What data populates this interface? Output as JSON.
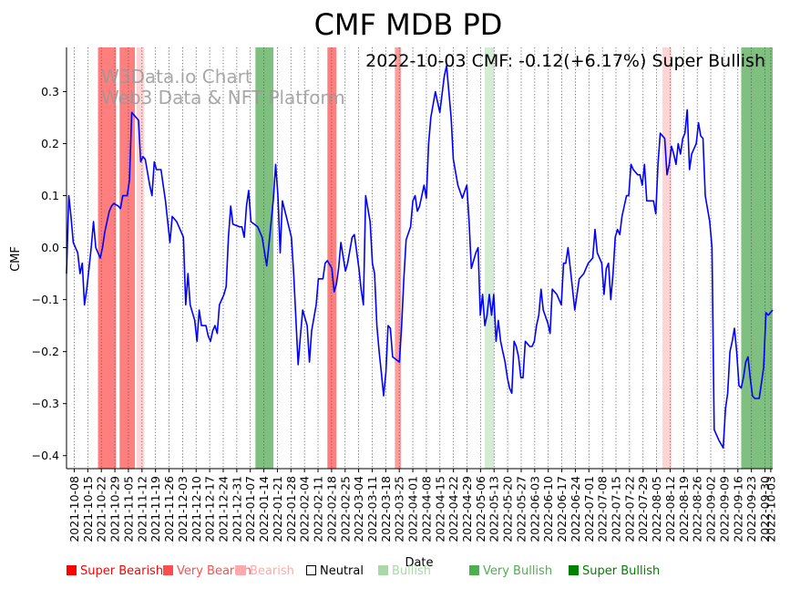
{
  "chart_data": {
    "type": "line",
    "title": "CMF MDB PD",
    "xlabel": "Date",
    "ylabel": "CMF",
    "ylim": [
      -0.425,
      0.385
    ],
    "yticks": [
      -0.4,
      -0.3,
      -0.2,
      -0.1,
      0.0,
      0.1,
      0.2,
      0.3
    ],
    "ytick_labels": [
      "−0.4",
      "−0.3",
      "−0.2",
      "−0.1",
      "0.0",
      "0.1",
      "0.2",
      "0.3"
    ],
    "start_date": "2021-10-04",
    "end_date": "2022-10-04",
    "xtick_labels": [
      "2021-10-08",
      "2021-10-15",
      "2021-10-22",
      "2021-10-29",
      "2021-11-05",
      "2021-11-12",
      "2021-11-19",
      "2021-11-26",
      "2021-12-03",
      "2021-12-10",
      "2021-12-17",
      "2021-12-24",
      "2021-12-31",
      "2022-01-07",
      "2022-01-14",
      "2022-01-21",
      "2022-01-28",
      "2022-02-04",
      "2022-02-11",
      "2022-02-18",
      "2022-02-25",
      "2022-03-04",
      "2022-03-11",
      "2022-03-18",
      "2022-03-25",
      "2022-04-01",
      "2022-04-08",
      "2022-04-15",
      "2022-04-22",
      "2022-04-29",
      "2022-05-06",
      "2022-05-13",
      "2022-05-20",
      "2022-05-27",
      "2022-06-03",
      "2022-06-10",
      "2022-06-17",
      "2022-06-24",
      "2022-07-01",
      "2022-07-08",
      "2022-07-15",
      "2022-07-22",
      "2022-07-29",
      "2022-08-05",
      "2022-08-12",
      "2022-08-19",
      "2022-08-26",
      "2022-09-02",
      "2022-09-09",
      "2022-09-16",
      "2022-09-23",
      "2022-09-30",
      "2022-10-03"
    ],
    "annotation": "2022-10-03 CMF: -0.12(+6.17%) Super Bullish",
    "watermark": [
      "W3Data.io Chart",
      "Web3 Data & NFT Platform"
    ],
    "series": [
      {
        "name": "CMF",
        "color": "#0000ff",
        "points": [
          [
            0.0,
            -0.05
          ],
          [
            0.5,
            0.1
          ],
          [
            1.0,
            0.06
          ],
          [
            1.5,
            0.01
          ],
          [
            2.5,
            -0.01
          ],
          [
            3.0,
            -0.05
          ],
          [
            3.5,
            -0.03
          ],
          [
            4.0,
            -0.11
          ],
          [
            4.5,
            -0.08
          ],
          [
            5.5,
            0.0
          ],
          [
            6.0,
            0.05
          ],
          [
            6.5,
            0.0
          ],
          [
            7.5,
            -0.02
          ],
          [
            8.0,
            0.0
          ],
          [
            8.5,
            0.03
          ],
          [
            9.5,
            0.07
          ],
          [
            10.0,
            0.08
          ],
          [
            10.5,
            0.085
          ],
          [
            11.5,
            0.08
          ],
          [
            12.0,
            0.075
          ],
          [
            12.5,
            0.1
          ],
          [
            13.5,
            0.1
          ],
          [
            14.0,
            0.13
          ],
          [
            14.5,
            0.26
          ],
          [
            15.5,
            0.25
          ],
          [
            16.0,
            0.245
          ],
          [
            16.5,
            0.165
          ],
          [
            17.0,
            0.175
          ],
          [
            17.5,
            0.17
          ],
          [
            18.5,
            0.12
          ],
          [
            19.0,
            0.1
          ],
          [
            19.5,
            0.165
          ],
          [
            20.0,
            0.15
          ],
          [
            21.0,
            0.15
          ],
          [
            21.5,
            0.12
          ],
          [
            22.0,
            0.09
          ],
          [
            23.0,
            0.01
          ],
          [
            23.5,
            0.06
          ],
          [
            24.5,
            0.05
          ],
          [
            25.0,
            0.04
          ],
          [
            26.0,
            0.02
          ],
          [
            26.5,
            -0.11
          ],
          [
            27.0,
            -0.05
          ],
          [
            27.5,
            -0.11
          ],
          [
            28.5,
            -0.14
          ],
          [
            29.0,
            -0.18
          ],
          [
            29.5,
            -0.12
          ],
          [
            30.0,
            -0.15
          ],
          [
            31.0,
            -0.15
          ],
          [
            31.5,
            -0.17
          ],
          [
            32.0,
            -0.18
          ],
          [
            32.5,
            -0.16
          ],
          [
            33.0,
            -0.15
          ],
          [
            33.5,
            -0.165
          ],
          [
            34.0,
            -0.11
          ],
          [
            35.0,
            -0.09
          ],
          [
            35.5,
            -0.075
          ],
          [
            36.0,
            0.02
          ],
          [
            36.5,
            0.08
          ],
          [
            37.0,
            0.045
          ],
          [
            38.5,
            0.04
          ],
          [
            39.0,
            0.04
          ],
          [
            39.5,
            0.02
          ],
          [
            40.0,
            0.08
          ],
          [
            40.5,
            0.11
          ],
          [
            41.0,
            0.05
          ],
          [
            42.5,
            0.04
          ],
          [
            43.5,
            0.02
          ],
          [
            44.5,
            -0.035
          ],
          [
            45.0,
            0.005
          ],
          [
            46.0,
            0.095
          ],
          [
            46.5,
            0.16
          ],
          [
            47.0,
            0.1
          ],
          [
            47.5,
            -0.01
          ],
          [
            48.0,
            0.09
          ],
          [
            49.0,
            0.055
          ],
          [
            50.0,
            0.02
          ],
          [
            50.5,
            -0.05
          ],
          [
            51.5,
            -0.225
          ],
          [
            52.0,
            -0.17
          ],
          [
            52.5,
            -0.12
          ],
          [
            53.5,
            -0.15
          ],
          [
            54.0,
            -0.22
          ],
          [
            54.5,
            -0.16
          ],
          [
            55.5,
            -0.11
          ],
          [
            56.0,
            -0.06
          ],
          [
            57.0,
            -0.06
          ],
          [
            57.5,
            -0.03
          ],
          [
            58.0,
            -0.025
          ],
          [
            59.0,
            -0.04
          ],
          [
            59.5,
            -0.085
          ],
          [
            60.0,
            -0.07
          ],
          [
            60.5,
            -0.04
          ],
          [
            61.0,
            0.01
          ],
          [
            62.0,
            -0.045
          ],
          [
            62.5,
            -0.03
          ],
          [
            63.5,
            0.02
          ],
          [
            64.0,
            0.025
          ],
          [
            65.0,
            -0.04
          ],
          [
            65.5,
            -0.08
          ],
          [
            66.0,
            -0.11
          ],
          [
            66.5,
            0.1
          ],
          [
            67.5,
            0.05
          ],
          [
            68.0,
            -0.03
          ],
          [
            68.5,
            -0.05
          ],
          [
            69.0,
            -0.15
          ],
          [
            69.5,
            -0.2
          ],
          [
            70.0,
            -0.24
          ],
          [
            70.5,
            -0.285
          ],
          [
            71.0,
            -0.24
          ],
          [
            71.5,
            -0.15
          ],
          [
            72.0,
            -0.155
          ],
          [
            72.5,
            -0.21
          ],
          [
            74.0,
            -0.22
          ],
          [
            74.5,
            -0.15
          ],
          [
            75.0,
            -0.06
          ],
          [
            75.5,
            0.015
          ],
          [
            76.5,
            0.04
          ],
          [
            77.0,
            0.09
          ],
          [
            77.5,
            0.1
          ],
          [
            78.0,
            0.07
          ],
          [
            78.5,
            0.08
          ],
          [
            79.5,
            0.12
          ],
          [
            80.0,
            0.095
          ],
          [
            80.5,
            0.2
          ],
          [
            81.0,
            0.25
          ],
          [
            82.0,
            0.3
          ],
          [
            82.5,
            0.28
          ],
          [
            83.0,
            0.26
          ],
          [
            84.0,
            0.33
          ],
          [
            84.5,
            0.35
          ],
          [
            85.5,
            0.25
          ],
          [
            86.0,
            0.17
          ],
          [
            87.0,
            0.12
          ],
          [
            88.0,
            0.095
          ],
          [
            89.0,
            0.12
          ],
          [
            89.5,
            0.05
          ],
          [
            90.0,
            -0.04
          ],
          [
            91.0,
            -0.01
          ],
          [
            91.5,
            0.0
          ],
          [
            92.0,
            -0.13
          ],
          [
            92.5,
            -0.09
          ],
          [
            93.0,
            -0.15
          ],
          [
            93.5,
            -0.13
          ],
          [
            94.0,
            -0.09
          ],
          [
            94.5,
            -0.13
          ],
          [
            95.0,
            -0.09
          ],
          [
            95.5,
            -0.18
          ],
          [
            96.0,
            -0.14
          ],
          [
            96.5,
            -0.18
          ],
          [
            97.0,
            -0.2
          ],
          [
            97.5,
            -0.22
          ],
          [
            98.0,
            -0.25
          ],
          [
            98.5,
            -0.27
          ],
          [
            99.0,
            -0.28
          ],
          [
            99.5,
            -0.18
          ],
          [
            100.0,
            -0.19
          ],
          [
            100.5,
            -0.21
          ],
          [
            101.0,
            -0.25
          ],
          [
            101.5,
            -0.25
          ],
          [
            102.0,
            -0.18
          ],
          [
            103.0,
            -0.19
          ],
          [
            103.5,
            -0.19
          ],
          [
            104.0,
            -0.18
          ],
          [
            104.5,
            -0.15
          ],
          [
            105.0,
            -0.13
          ],
          [
            105.5,
            -0.08
          ],
          [
            106.0,
            -0.12
          ],
          [
            107.0,
            -0.145
          ],
          [
            107.5,
            -0.165
          ],
          [
            108.0,
            -0.08
          ],
          [
            109.0,
            -0.09
          ],
          [
            110.0,
            -0.11
          ],
          [
            110.5,
            -0.03
          ],
          [
            111.0,
            -0.03
          ],
          [
            111.5,
            0.0
          ],
          [
            112.0,
            -0.04
          ],
          [
            113.0,
            -0.12
          ],
          [
            114.0,
            -0.06
          ],
          [
            115.0,
            -0.05
          ],
          [
            115.5,
            -0.04
          ],
          [
            116.0,
            -0.03
          ],
          [
            117.0,
            -0.02
          ],
          [
            117.5,
            0.035
          ],
          [
            118.0,
            -0.01
          ],
          [
            119.0,
            -0.03
          ],
          [
            119.5,
            -0.09
          ],
          [
            120.0,
            -0.04
          ],
          [
            120.5,
            -0.03
          ],
          [
            121.0,
            -0.1
          ],
          [
            121.5,
            -0.05
          ],
          [
            122.0,
            0.02
          ],
          [
            122.5,
            0.035
          ],
          [
            123.0,
            0.025
          ],
          [
            123.5,
            0.06
          ],
          [
            124.0,
            0.08
          ],
          [
            124.5,
            0.1
          ],
          [
            125.0,
            0.1
          ],
          [
            125.5,
            0.16
          ],
          [
            126.0,
            0.15
          ],
          [
            127.0,
            0.14
          ],
          [
            127.5,
            0.14
          ],
          [
            128.0,
            0.12
          ],
          [
            128.5,
            0.16
          ],
          [
            129.0,
            0.09
          ],
          [
            130.5,
            0.09
          ],
          [
            131.0,
            0.065
          ],
          [
            131.5,
            0.16
          ],
          [
            132.0,
            0.22
          ],
          [
            133.0,
            0.21
          ],
          [
            133.5,
            0.14
          ],
          [
            134.0,
            0.16
          ],
          [
            134.5,
            0.195
          ],
          [
            135.0,
            0.18
          ],
          [
            135.5,
            0.16
          ],
          [
            136.0,
            0.2
          ],
          [
            136.5,
            0.18
          ],
          [
            137.0,
            0.21
          ],
          [
            137.5,
            0.22
          ],
          [
            138.0,
            0.265
          ],
          [
            138.5,
            0.15
          ],
          [
            139.0,
            0.18
          ],
          [
            139.5,
            0.19
          ],
          [
            140.0,
            0.2
          ],
          [
            140.5,
            0.24
          ],
          [
            141.0,
            0.215
          ],
          [
            141.5,
            0.21
          ],
          [
            142.0,
            0.1
          ],
          [
            143.0,
            0.05
          ],
          [
            143.5,
            0.0
          ],
          [
            144.0,
            -0.35
          ],
          [
            144.5,
            -0.36
          ],
          [
            145.0,
            -0.37
          ],
          [
            146.0,
            -0.385
          ],
          [
            146.5,
            -0.31
          ],
          [
            147.0,
            -0.28
          ],
          [
            147.5,
            -0.2
          ],
          [
            148.0,
            -0.18
          ],
          [
            148.5,
            -0.155
          ],
          [
            149.0,
            -0.2
          ],
          [
            149.5,
            -0.265
          ],
          [
            150.0,
            -0.27
          ],
          [
            150.5,
            -0.25
          ],
          [
            151.0,
            -0.22
          ],
          [
            151.5,
            -0.21
          ],
          [
            152.0,
            -0.25
          ],
          [
            152.5,
            -0.285
          ],
          [
            153.0,
            -0.29
          ],
          [
            154.0,
            -0.29
          ],
          [
            154.5,
            -0.26
          ],
          [
            155.0,
            -0.23
          ],
          [
            155.5,
            -0.125
          ],
          [
            156.0,
            -0.13
          ],
          [
            157.0,
            -0.12
          ]
        ]
      }
    ],
    "signal_bands": [
      {
        "from": 7.0,
        "to": 11.0,
        "category": "Super Bearish"
      },
      {
        "from": 11.8,
        "to": 15.2,
        "category": "Super Bearish"
      },
      {
        "from": 15.6,
        "to": 17.3,
        "category": "Bearish"
      },
      {
        "from": 42.0,
        "to": 46.0,
        "category": "Super Bullish"
      },
      {
        "from": 58.0,
        "to": 60.0,
        "category": "Super Bearish"
      },
      {
        "from": 73.0,
        "to": 74.4,
        "category": "Very Bearish"
      },
      {
        "from": 93.0,
        "to": 95.0,
        "category": "Bullish"
      },
      {
        "from": 132.5,
        "to": 134.5,
        "category": "Bearish"
      },
      {
        "from": 150.0,
        "to": 157.0,
        "category": "Super Bullish"
      }
    ],
    "legend": [
      {
        "label": "Super Bearish",
        "color": "#ff0000"
      },
      {
        "label": "Very Bearish",
        "color": "#ff4d4d"
      },
      {
        "label": "Bearish",
        "color": "#ffaaaa"
      },
      {
        "label": "Neutral",
        "color": "#000000"
      },
      {
        "label": "Bullish",
        "color": "#a9d8a9"
      },
      {
        "label": "Very Bullish",
        "color": "#4caf50"
      },
      {
        "label": "Super Bullish",
        "color": "#008000"
      }
    ]
  }
}
